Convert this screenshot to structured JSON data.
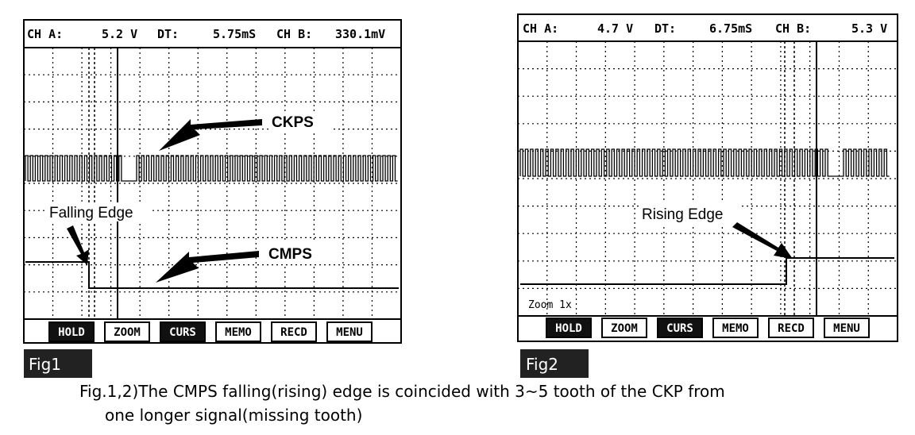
{
  "figures": [
    {
      "header": {
        "ch_a_label": "CH A:",
        "ch_a_value": "5.2 V",
        "dt_label": "DT:",
        "dt_value": "5.75mS",
        "ch_b_label": "CH B:",
        "ch_b_value": "330.1mV"
      },
      "annotations": [
        "CKPS",
        "Falling Edge",
        "CMPS"
      ],
      "buttons": [
        "HOLD",
        "ZOOM",
        "CURS",
        "MEMO",
        "RECD",
        "MENU"
      ],
      "label": "Fig1"
    },
    {
      "header": {
        "ch_a_label": "CH A:",
        "ch_a_value": "4.7 V",
        "dt_label": "DT:",
        "dt_value": "6.75mS",
        "ch_b_label": "CH B:",
        "ch_b_value": "5.3 V"
      },
      "annotations": [
        "Rising Edge"
      ],
      "zoom": "Zoom 1x",
      "buttons": [
        "HOLD",
        "ZOOM",
        "CURS",
        "MEMO",
        "RECD",
        "MENU"
      ],
      "label": "Fig2"
    }
  ],
  "caption": [
    "Fig.1,2)The CMPS falling(rising) edge is coincided with 3~5 tooth of the CKP from",
    "one longer signal(missing tooth)"
  ]
}
